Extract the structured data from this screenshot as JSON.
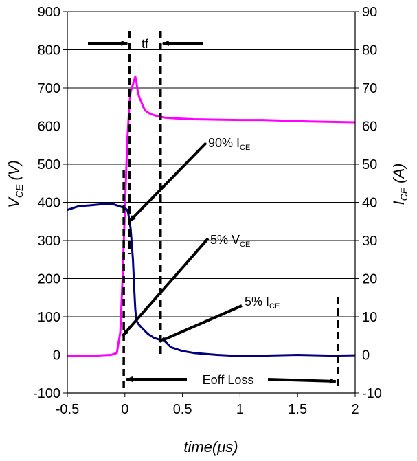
{
  "chart_data": {
    "type": "line",
    "xlabel": "time(μs)",
    "ylabel_left": {
      "main": "V",
      "sub": "CE",
      "rest": " (V)"
    },
    "ylabel_right": {
      "main": "I",
      "sub": "CE",
      "rest": " (A)"
    },
    "xlim": [
      -0.5,
      2
    ],
    "ylim_left": [
      -100,
      900
    ],
    "ylim_right": [
      -10,
      90
    ],
    "x_ticks": [
      "-0.5",
      "0",
      "0.5",
      "1",
      "1.5",
      "2"
    ],
    "y_ticks_left": [
      "-100",
      "0",
      "100",
      "200",
      "300",
      "400",
      "500",
      "600",
      "700",
      "800",
      "900"
    ],
    "y_ticks_right": [
      "-10",
      "0",
      "10",
      "20",
      "30",
      "40",
      "50",
      "60",
      "70",
      "80",
      "90"
    ],
    "grid": "horizontal",
    "colors": {
      "vce": "#ff00ff",
      "ice": "#000080",
      "axes": "#000000",
      "markers": "#000000"
    },
    "series": [
      {
        "axis": "left",
        "color": "#ff00ff",
        "x": [
          -0.5,
          -0.4,
          -0.3,
          -0.2,
          -0.12,
          -0.07,
          -0.04,
          -0.02,
          0.0,
          0.02,
          0.04,
          0.05,
          0.06,
          0.08,
          0.09,
          0.1,
          0.11,
          0.12,
          0.14,
          0.16,
          0.18,
          0.22,
          0.26,
          0.3,
          0.35,
          0.45,
          0.6,
          0.8,
          1.0,
          1.2,
          1.4,
          1.6,
          1.8,
          2.0
        ],
        "y": [
          -3,
          -2,
          -3,
          -1,
          0,
          5,
          60,
          200,
          380,
          560,
          660,
          690,
          700,
          720,
          730,
          715,
          695,
          680,
          665,
          650,
          640,
          632,
          628,
          625,
          622,
          620,
          618,
          617,
          616,
          616,
          614,
          612,
          611,
          610
        ]
      },
      {
        "axis": "right",
        "color": "#000080",
        "x": [
          -0.5,
          -0.4,
          -0.3,
          -0.2,
          -0.1,
          -0.05,
          0.0,
          0.02,
          0.03,
          0.05,
          0.07,
          0.08,
          0.09,
          0.1,
          0.12,
          0.15,
          0.2,
          0.25,
          0.3,
          0.35,
          0.4,
          0.5,
          0.6,
          0.8,
          1.0,
          1.2,
          1.5,
          1.8,
          2.0
        ],
        "y": [
          38,
          39,
          39.2,
          39.5,
          39.5,
          39,
          38.5,
          38,
          37,
          33,
          25,
          18,
          12,
          9,
          8,
          7,
          5.5,
          4.5,
          4,
          3.5,
          2,
          1,
          0.5,
          0,
          -0.3,
          -0.2,
          0,
          -0.2,
          -0.1
        ]
      }
    ],
    "markers": {
      "vertical_dashed_x": [
        -0.01,
        0.04,
        0.31,
        1.85
      ],
      "tf_label": "tf",
      "eoff_label": "Eoff Loss"
    },
    "annotations": [
      {
        "main": "90% I",
        "sub": "CE",
        "target_x": 0.04,
        "target_y": 350
      },
      {
        "main": "5% V",
        "sub": "CE",
        "target_x": -0.02,
        "target_y": 50
      },
      {
        "main": "5% I",
        "sub": "CE",
        "target_x": 0.3,
        "target_y": 35
      }
    ]
  }
}
